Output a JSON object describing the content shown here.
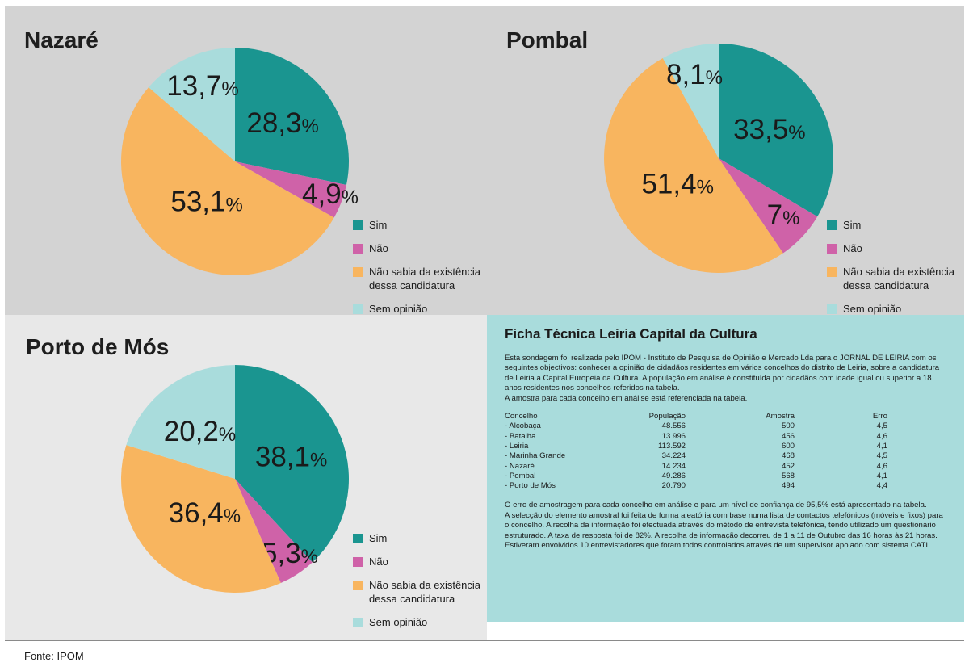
{
  "legend": {
    "items": [
      {
        "label": "Sim",
        "color": "#1a9590"
      },
      {
        "label": "Não",
        "color": "#cf62a8"
      },
      {
        "label": "Não sabia da existência\ndessa candidatura",
        "color": "#f8b55f"
      },
      {
        "label": "Sem opinião",
        "color": "#a9dcdc"
      }
    ]
  },
  "chart_data": [
    {
      "type": "pie",
      "title": "Nazaré",
      "categories": [
        "Sim",
        "Não",
        "Não sabia da existência dessa candidatura",
        "Sem opinião"
      ],
      "values": [
        28.3,
        4.9,
        53.1,
        13.7
      ],
      "labels": [
        "28,3",
        "4,9",
        "53,1",
        "13,7"
      ],
      "colors": [
        "#1a9590",
        "#cf62a8",
        "#f8b55f",
        "#a9dcdc"
      ]
    },
    {
      "type": "pie",
      "title": "Pombal",
      "categories": [
        "Sim",
        "Não",
        "Não sabia da existência dessa candidatura",
        "Sem opinião"
      ],
      "values": [
        33.5,
        7,
        51.4,
        8.1
      ],
      "labels": [
        "33,5",
        "7",
        "51,4",
        "8,1"
      ],
      "colors": [
        "#1a9590",
        "#cf62a8",
        "#f8b55f",
        "#a9dcdc"
      ]
    },
    {
      "type": "pie",
      "title": "Porto de Mós",
      "categories": [
        "Sim",
        "Não",
        "Não sabia da existência dessa candidatura",
        "Sem opinião"
      ],
      "values": [
        38.1,
        5.3,
        36.4,
        20.2
      ],
      "labels": [
        "38,1",
        "5,3",
        "36,4",
        "20,2"
      ],
      "colors": [
        "#1a9590",
        "#cf62a8",
        "#f8b55f",
        "#a9dcdc"
      ]
    }
  ],
  "pct_symbol": "%",
  "ficha": {
    "title": "Ficha Técnica Leiria Capital da Cultura",
    "intro": "Esta sondagem foi realizada pelo IPOM - Instituto de Pesquisa de Opinião e Mercado Lda para o JORNAL DE LEIRIA com os seguintes objectivos: conhecer a opinião de cidadãos residentes em vários concelhos do distrito de Leiria, sobre a candidatura de Leiria a Capital Europeia da Cultura. A população em análise é constituída por cidadãos com idade igual ou superior a 18 anos residentes nos concelhos referidos na tabela.",
    "intro2": "A amostra para cada concelho em análise está referenciada na tabela.",
    "table": {
      "headers": [
        "Concelho",
        "População",
        "Amostra",
        "Erro"
      ],
      "rows": [
        [
          "- Alcobaça",
          "48.556",
          "500",
          "4,5"
        ],
        [
          "- Batalha",
          "13.996",
          "456",
          "4,6"
        ],
        [
          "- Leiria",
          "113.592",
          "600",
          "4,1"
        ],
        [
          "- Marinha Grande",
          "34.224",
          "468",
          "4,5"
        ],
        [
          "- Nazaré",
          "14.234",
          "452",
          "4,6"
        ],
        [
          "- Pombal",
          "49.286",
          "568",
          "4,1"
        ],
        [
          "- Porto de Mós",
          "20.790",
          "494",
          "4,4"
        ]
      ]
    },
    "outro1": "O erro de amostragem para cada concelho em análise e para um nível de confiança de 95,5% está apresentado na tabela.",
    "outro2": "A selecção do elemento amostral foi feita de forma aleatória com base numa lista de contactos telefónicos (móveis e fixos) para o concelho. A recolha da informação foi efectuada através do método de entrevista telefónica, tendo utilizado um questionário estruturado. A taxa de resposta foi de 82%. A recolha de informação decorreu de 1 a 11 de Outubro das 16 horas às 21 horas. Estiveram envolvidos 10 entrevistadores que foram todos controlados através de um supervisor apoiado com sistema CATI."
  },
  "fonte": "Fonte: IPOM"
}
